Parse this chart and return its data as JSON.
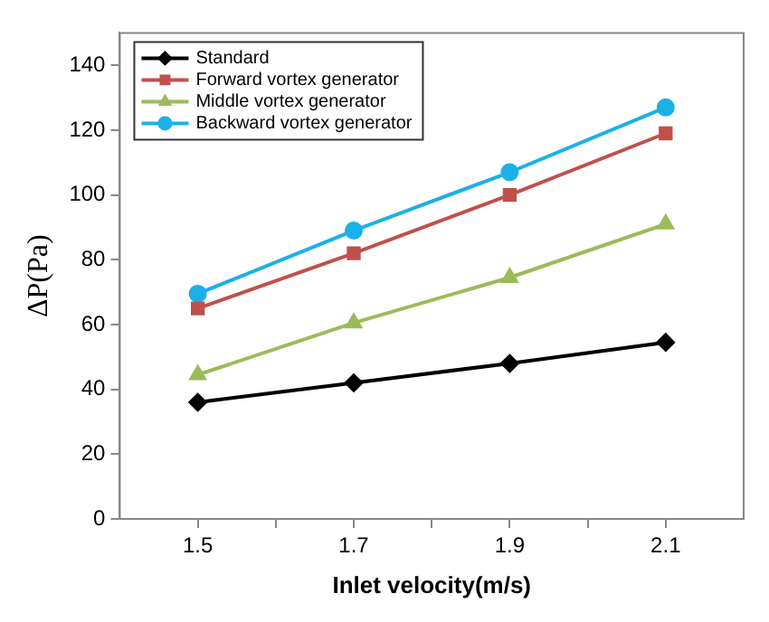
{
  "chart_data": {
    "type": "line",
    "xlabel": "Inlet velocity(m/s)",
    "ylabel": "ΔP(Pa)",
    "x": [
      1.5,
      1.7,
      1.9,
      2.1
    ],
    "xlim": [
      1.4,
      2.2
    ],
    "xticks": [
      1.5,
      {
        "value": 1.6,
        "label": null
      },
      1.7,
      {
        "value": 1.8,
        "label": null
      },
      1.9,
      {
        "value": 2.0,
        "label": null
      },
      2.1
    ],
    "ylim": [
      0,
      150
    ],
    "yticks": [
      0,
      20,
      40,
      60,
      80,
      100,
      120,
      140
    ],
    "grid": false,
    "legend": "top left",
    "line_style": "solid",
    "series": [
      {
        "name": "Standard",
        "color": "#000000",
        "marker": "diamond",
        "values": [
          36,
          42,
          48,
          54.5
        ]
      },
      {
        "name": "Forward vortex generator",
        "color": "#c0504d",
        "marker": "square",
        "values": [
          65,
          82,
          100,
          119
        ]
      },
      {
        "name": "Middle vortex generator",
        "color": "#9bbb59",
        "marker": "triangle",
        "values": [
          44.5,
          60.5,
          74.5,
          91
        ]
      },
      {
        "name": "Backward vortex generator",
        "color": "#1cb0e8",
        "marker": "circle",
        "values": [
          69.5,
          89,
          107,
          127
        ]
      }
    ]
  }
}
